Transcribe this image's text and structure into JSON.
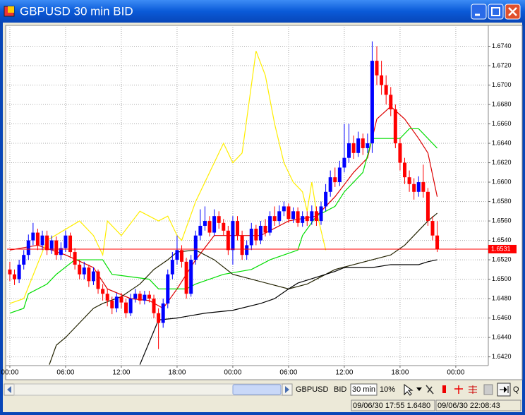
{
  "window": {
    "title": "GBPUSD 30 min BID"
  },
  "toolbar": {
    "symbol": "GBPUSD",
    "side": "BID",
    "period": "30 min",
    "zoom": "10%",
    "quote": "Q"
  },
  "status": [
    "09/06/30 17:55 1.6480",
    "09/06/30 22:08:43"
  ],
  "chart_data": {
    "type": "candlestick",
    "up_color": "#0000ff",
    "down_color": "#ff0000",
    "grid": true,
    "open": [
      1.651,
      1.6505,
      1.65,
      1.6515,
      1.6525,
      1.654,
      1.6548,
      1.6535,
      1.6545,
      1.653,
      1.654,
      1.6525,
      1.6532,
      1.6545,
      1.6528,
      1.6515,
      1.6505,
      1.6512,
      1.6498,
      1.6508,
      1.649,
      1.6485,
      1.6478,
      1.647,
      1.6482,
      1.6476,
      1.6465,
      1.648,
      1.6485,
      1.6478,
      1.6484,
      1.648,
      1.6465,
      1.6455,
      1.6475,
      1.6505,
      1.652,
      1.653,
      1.6518,
      1.6485,
      1.652,
      1.6545,
      1.6555,
      1.656,
      1.6548,
      1.6565,
      1.6558,
      1.655,
      1.653,
      1.656,
      1.6545,
      1.6525,
      1.6535,
      1.6552,
      1.654,
      1.6555,
      1.6548,
      1.6565,
      1.656,
      1.657,
      1.6575,
      1.6562,
      1.657,
      1.6558,
      1.6565,
      1.656,
      1.657,
      1.656,
      1.6575,
      1.659,
      1.6605,
      1.66,
      1.6615,
      1.6625,
      1.664,
      1.663,
      1.6645,
      1.6635,
      1.664,
      1.6725,
      1.671,
      1.67,
      1.669,
      1.6675,
      1.664,
      1.662,
      1.6605,
      1.6598,
      1.659,
      1.66,
      1.659,
      1.656,
      1.6545
    ],
    "high": [
      1.6518,
      1.651,
      1.652,
      1.653,
      1.6546,
      1.6558,
      1.6552,
      1.655,
      1.655,
      1.6545,
      1.6544,
      1.6538,
      1.655,
      1.6548,
      1.6532,
      1.652,
      1.6518,
      1.6515,
      1.6512,
      1.651,
      1.6495,
      1.649,
      1.6482,
      1.6486,
      1.6486,
      1.648,
      1.6485,
      1.649,
      1.6488,
      1.6488,
      1.6488,
      1.6484,
      1.647,
      1.648,
      1.651,
      1.6528,
      1.6545,
      1.6535,
      1.6522,
      1.6525,
      1.655,
      1.6572,
      1.6575,
      1.6565,
      1.6572,
      1.657,
      1.6562,
      1.6555,
      1.6565,
      1.6565,
      1.655,
      1.654,
      1.6558,
      1.6556,
      1.656,
      1.6562,
      1.657,
      1.6575,
      1.6576,
      1.658,
      1.6578,
      1.6574,
      1.6574,
      1.657,
      1.657,
      1.6576,
      1.6575,
      1.658,
      1.6598,
      1.6612,
      1.6615,
      1.6622,
      1.666,
      1.666,
      1.6648,
      1.6652,
      1.665,
      1.665,
      1.6745,
      1.674,
      1.6725,
      1.671,
      1.6698,
      1.668,
      1.6645,
      1.6625,
      1.6612,
      1.6604,
      1.6606,
      1.6618,
      1.6594,
      1.6565,
      1.656
    ],
    "low": [
      1.6498,
      1.6494,
      1.6496,
      1.651,
      1.652,
      1.6535,
      1.653,
      1.653,
      1.6525,
      1.6526,
      1.652,
      1.652,
      1.6528,
      1.6522,
      1.651,
      1.65,
      1.65,
      1.6492,
      1.6494,
      1.6485,
      1.6478,
      1.6472,
      1.6464,
      1.6466,
      1.647,
      1.646,
      1.6462,
      1.6476,
      1.6474,
      1.6474,
      1.6476,
      1.646,
      1.6428,
      1.645,
      1.647,
      1.65,
      1.6515,
      1.6512,
      1.648,
      1.6482,
      1.6515,
      1.654,
      1.655,
      1.6544,
      1.6545,
      1.6552,
      1.6545,
      1.6525,
      1.6515,
      1.654,
      1.652,
      1.652,
      1.653,
      1.6535,
      1.6536,
      1.6544,
      1.6545,
      1.6555,
      1.6556,
      1.6565,
      1.6558,
      1.6558,
      1.6554,
      1.6554,
      1.6555,
      1.6556,
      1.6555,
      1.6556,
      1.657,
      1.6585,
      1.6595,
      1.6596,
      1.661,
      1.662,
      1.6624,
      1.6626,
      1.6628,
      1.663,
      1.663,
      1.67,
      1.669,
      1.668,
      1.6668,
      1.6635,
      1.6612,
      1.6598,
      1.659,
      1.6582,
      1.6585,
      1.6584,
      1.6555,
      1.654,
      1.6528
    ],
    "close": [
      1.6505,
      1.65,
      1.6515,
      1.6525,
      1.654,
      1.6548,
      1.6535,
      1.6545,
      1.653,
      1.654,
      1.6525,
      1.6532,
      1.6545,
      1.6528,
      1.6515,
      1.6505,
      1.6512,
      1.6498,
      1.6508,
      1.649,
      1.6485,
      1.6478,
      1.647,
      1.6482,
      1.6476,
      1.6465,
      1.648,
      1.6485,
      1.6478,
      1.6484,
      1.648,
      1.6465,
      1.6455,
      1.6475,
      1.6505,
      1.652,
      1.653,
      1.6518,
      1.6485,
      1.652,
      1.6545,
      1.6555,
      1.656,
      1.6548,
      1.6565,
      1.6558,
      1.655,
      1.653,
      1.656,
      1.6545,
      1.6525,
      1.6535,
      1.6552,
      1.654,
      1.6555,
      1.6548,
      1.6565,
      1.656,
      1.657,
      1.6575,
      1.6562,
      1.657,
      1.6558,
      1.6565,
      1.656,
      1.657,
      1.656,
      1.6575,
      1.659,
      1.6605,
      1.66,
      1.6615,
      1.6625,
      1.664,
      1.663,
      1.6645,
      1.6635,
      1.664,
      1.6725,
      1.671,
      1.67,
      1.669,
      1.6675,
      1.664,
      1.662,
      1.6605,
      1.6598,
      1.659,
      1.66,
      1.659,
      1.656,
      1.6545,
      1.6531
    ],
    "lines": [
      {
        "color": "#dd0000",
        "x": [
          0,
          6,
          12,
          18,
          21,
          26,
          30,
          33,
          36,
          40,
          44,
          48,
          54,
          60,
          66,
          70,
          74,
          77,
          79,
          82,
          85,
          88,
          90,
          92
        ],
        "values": [
          1.653,
          1.6535,
          1.6525,
          1.6512,
          1.649,
          1.648,
          1.6478,
          1.647,
          1.649,
          1.652,
          1.6545,
          1.6545,
          1.6545,
          1.656,
          1.6565,
          1.6585,
          1.661,
          1.6625,
          1.6665,
          1.6678,
          1.6665,
          1.6645,
          1.663,
          1.6585
        ]
      },
      {
        "color": "#00dd00",
        "x": [
          0,
          3,
          4,
          8,
          10,
          14,
          20,
          22,
          30,
          32,
          38,
          40,
          43,
          46,
          52,
          56,
          62,
          63,
          66,
          70,
          72,
          76,
          78,
          84,
          86,
          88,
          92
        ],
        "values": [
          1.6465,
          1.647,
          1.6485,
          1.6495,
          1.6505,
          1.652,
          1.652,
          1.6505,
          1.65,
          1.649,
          1.649,
          1.6495,
          1.65,
          1.6505,
          1.651,
          1.652,
          1.653,
          1.6545,
          1.6565,
          1.6575,
          1.659,
          1.661,
          1.6645,
          1.6645,
          1.6655,
          1.6655,
          1.6635
        ]
      },
      {
        "color": "#ffee00",
        "x": [
          0,
          3,
          8,
          15,
          18,
          20,
          21,
          24,
          28,
          32,
          34,
          36,
          37,
          40,
          42,
          46,
          48,
          50,
          53,
          55,
          57,
          59,
          61,
          63,
          64,
          65,
          66,
          68
        ],
        "values": [
          1.6475,
          1.648,
          1.654,
          1.656,
          1.6545,
          1.6525,
          1.656,
          1.6545,
          1.657,
          1.656,
          1.6565,
          1.6545,
          1.654,
          1.658,
          1.66,
          1.664,
          1.662,
          1.663,
          1.6735,
          1.671,
          1.666,
          1.662,
          1.66,
          1.659,
          1.657,
          1.66,
          1.657,
          1.653
        ]
      },
      {
        "color": "#222200",
        "x": [
          8.5,
          10,
          12,
          14,
          16,
          18,
          20,
          24,
          28,
          31,
          34,
          36,
          40,
          44,
          48,
          52,
          56,
          60,
          64,
          66,
          70,
          74,
          78,
          82,
          85,
          88,
          90,
          92
        ],
        "values": [
          1.6412,
          1.6432,
          1.644,
          1.645,
          1.646,
          1.647,
          1.6475,
          1.6482,
          1.6495,
          1.651,
          1.652,
          1.6528,
          1.653,
          1.652,
          1.6505,
          1.65,
          1.6495,
          1.649,
          1.6495,
          1.65,
          1.651,
          1.6515,
          1.652,
          1.6525,
          1.6535,
          1.655,
          1.656,
          1.6568
        ]
      },
      {
        "color": "#000000",
        "x": [
          28,
          30,
          32,
          36,
          42,
          48,
          54,
          57,
          60,
          62,
          66,
          70,
          72,
          78,
          82,
          88,
          90,
          92
        ],
        "values": [
          1.6412,
          1.6435,
          1.6458,
          1.646,
          1.6465,
          1.6468,
          1.6475,
          1.648,
          1.649,
          1.6496,
          1.6502,
          1.6508,
          1.6512,
          1.6512,
          1.6515,
          1.6515,
          1.6518,
          1.652
        ]
      }
    ],
    "current_price": 1.6531,
    "price_line_color": "#ff0000",
    "xlim": [
      -0.6,
      103
    ],
    "ylim": [
      1.6411,
      1.676
    ],
    "xticks": [
      {
        "value": 0,
        "label": "00:00"
      },
      {
        "value": 12,
        "label": "06:00"
      },
      {
        "value": 24,
        "label": "12:00"
      },
      {
        "value": 36,
        "label": "18:00"
      },
      {
        "value": 48,
        "label": "00:00"
      },
      {
        "value": 60,
        "label": "06:00"
      },
      {
        "value": 72,
        "label": "12:00"
      },
      {
        "value": 84,
        "label": "18:00"
      },
      {
        "value": 96,
        "label": "00:00"
      }
    ],
    "yticks": [
      {
        "value": 1.642,
        "label": "1.6420"
      },
      {
        "value": 1.644,
        "label": "1.6440"
      },
      {
        "value": 1.646,
        "label": "1.6460"
      },
      {
        "value": 1.648,
        "label": "1.6480"
      },
      {
        "value": 1.65,
        "label": "1.6500"
      },
      {
        "value": 1.652,
        "label": "1.6520"
      },
      {
        "value": 1.654,
        "label": "1.6540"
      },
      {
        "value": 1.656,
        "label": "1.6560"
      },
      {
        "value": 1.658,
        "label": "1.6580"
      },
      {
        "value": 1.66,
        "label": "1.6600"
      },
      {
        "value": 1.662,
        "label": "1.6620"
      },
      {
        "value": 1.664,
        "label": "1.6640"
      },
      {
        "value": 1.666,
        "label": "1.6660"
      },
      {
        "value": 1.668,
        "label": "1.6680"
      },
      {
        "value": 1.67,
        "label": "1.6700"
      },
      {
        "value": 1.672,
        "label": "1.6720"
      },
      {
        "value": 1.674,
        "label": "1.6740"
      }
    ]
  }
}
